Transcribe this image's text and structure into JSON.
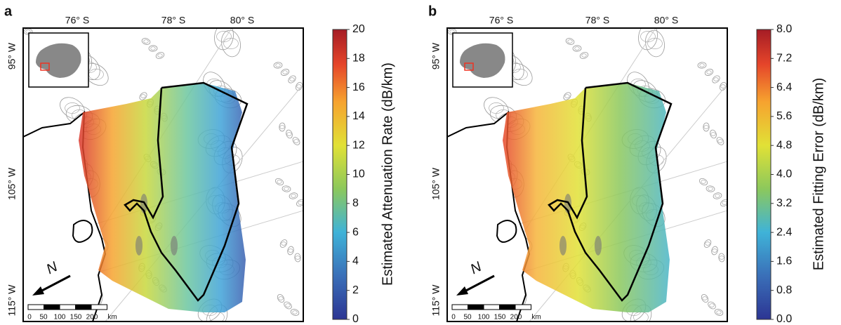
{
  "panels": [
    {
      "label": "a",
      "lat_labels": [
        "76° S",
        "78° S",
        "80° S"
      ],
      "lon_labels": [
        "95° W",
        "105° W",
        "115° W"
      ],
      "north": "N",
      "scale_labels": [
        "0",
        "50",
        "100",
        "150",
        "200",
        "km"
      ],
      "colorbar": {
        "title": "Estimated Attenuation Rate (dB/km)",
        "range": [
          0,
          20
        ],
        "ticks": [
          0,
          2,
          4,
          6,
          8,
          10,
          12,
          14,
          16,
          18,
          20
        ]
      }
    },
    {
      "label": "b",
      "lat_labels": [
        "76° S",
        "78° S",
        "80° S"
      ],
      "lon_labels": [
        "95° W",
        "105° W",
        "115° W"
      ],
      "north": "N",
      "scale_labels": [
        "0",
        "50",
        "100",
        "150",
        "200",
        "km"
      ],
      "colorbar": {
        "title": "Estimated Fitting Error (dB/km)",
        "range": [
          0,
          8
        ],
        "ticks": [
          {
            "value": 0,
            "label": "0.0"
          },
          {
            "value": 0.8,
            "label": "0.8"
          },
          {
            "value": 1.6,
            "label": "1.6"
          },
          {
            "value": 2.4,
            "label": "2.4"
          },
          {
            "value": 3.2,
            "label": "3.2"
          },
          {
            "value": 4,
            "label": "4.0"
          },
          {
            "value": 4.8,
            "label": "4.8"
          },
          {
            "value": 5.6,
            "label": "5.6"
          },
          {
            "value": 6.4,
            "label": "6.4"
          },
          {
            "value": 7.2,
            "label": "7.2"
          },
          {
            "value": 8,
            "label": "8.0"
          }
        ]
      }
    }
  ]
}
